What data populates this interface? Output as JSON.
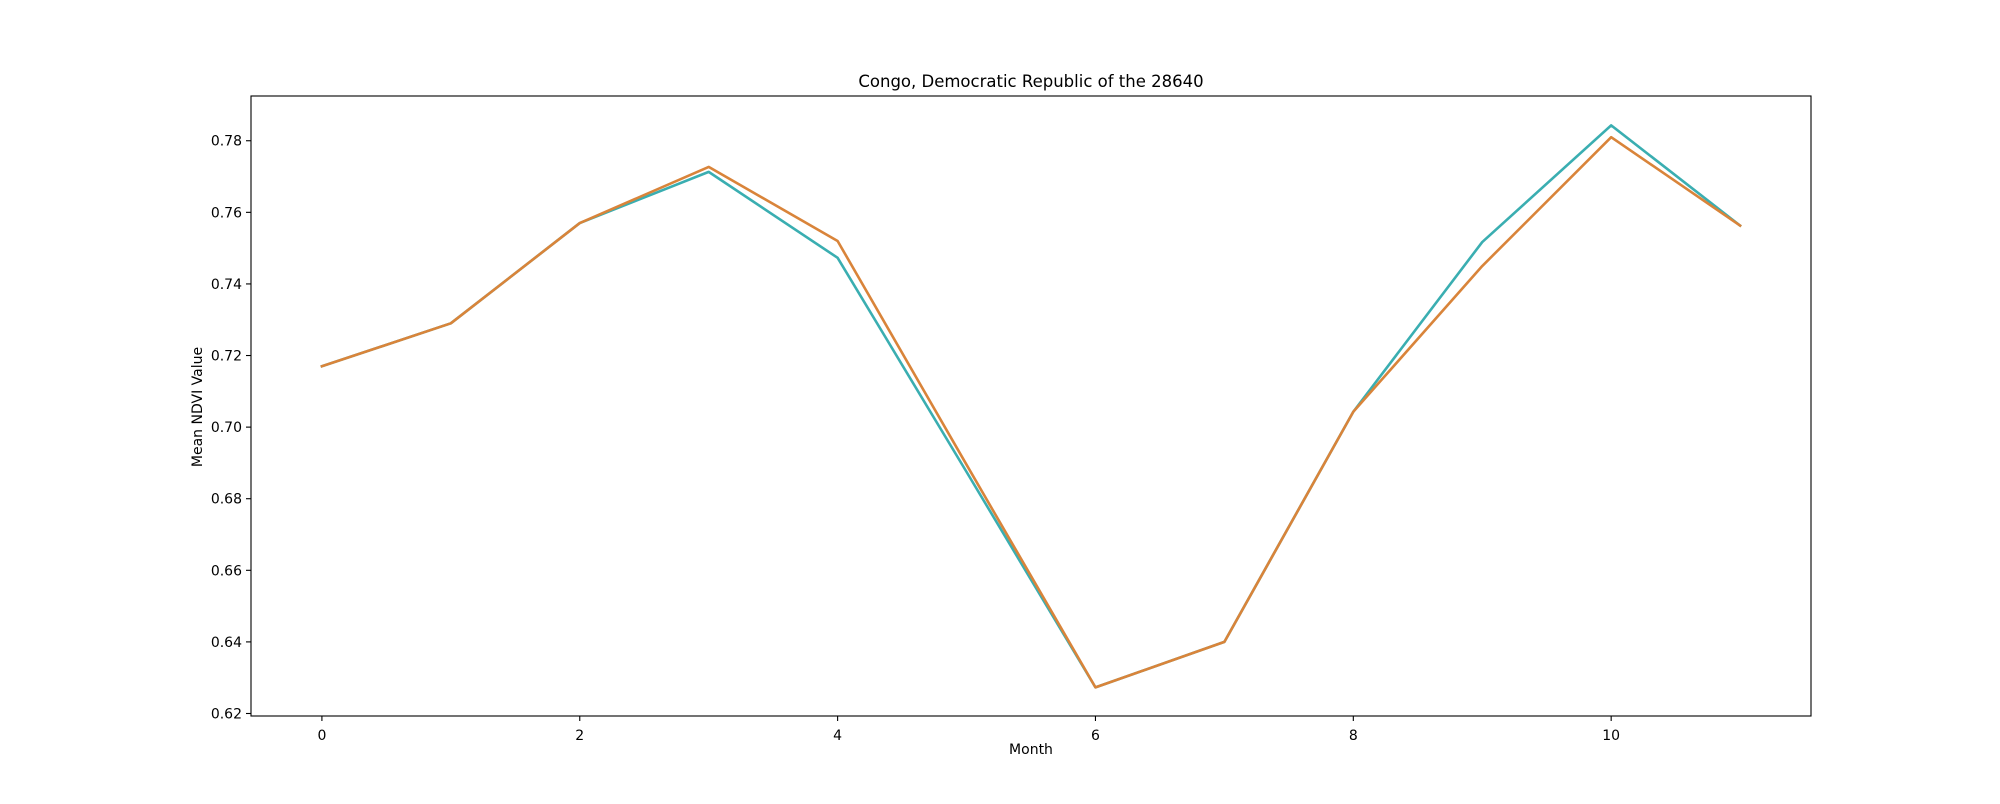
{
  "chart_data": {
    "type": "line",
    "title": "Congo, Democratic Republic of the 28640",
    "xlabel": "Month",
    "ylabel": "Mean NDVI Value",
    "x": [
      0,
      1,
      2,
      3,
      4,
      5,
      6,
      7,
      8,
      9,
      10,
      11
    ],
    "xlim": [
      -0.55,
      11.55
    ],
    "ylim": [
      0.6193,
      0.7925
    ],
    "xticks": [
      0,
      2,
      4,
      6,
      8,
      10
    ],
    "yticks": [
      0.62,
      0.64,
      0.66,
      0.68,
      0.7,
      0.72,
      0.74,
      0.76,
      0.78
    ],
    "grid": false,
    "legend": false,
    "series": [
      {
        "color": "#3aaeb1",
        "values": [
          0.717,
          0.729,
          0.757,
          0.7713,
          0.7473,
          0.6875,
          0.6273,
          0.64,
          0.7043,
          0.7517,
          0.7843,
          0.7563
        ]
      },
      {
        "color": "#d9843a",
        "values": [
          0.717,
          0.729,
          0.757,
          0.7727,
          0.752,
          0.6895,
          0.6273,
          0.64,
          0.7043,
          0.745,
          0.781,
          0.7563
        ]
      }
    ]
  }
}
